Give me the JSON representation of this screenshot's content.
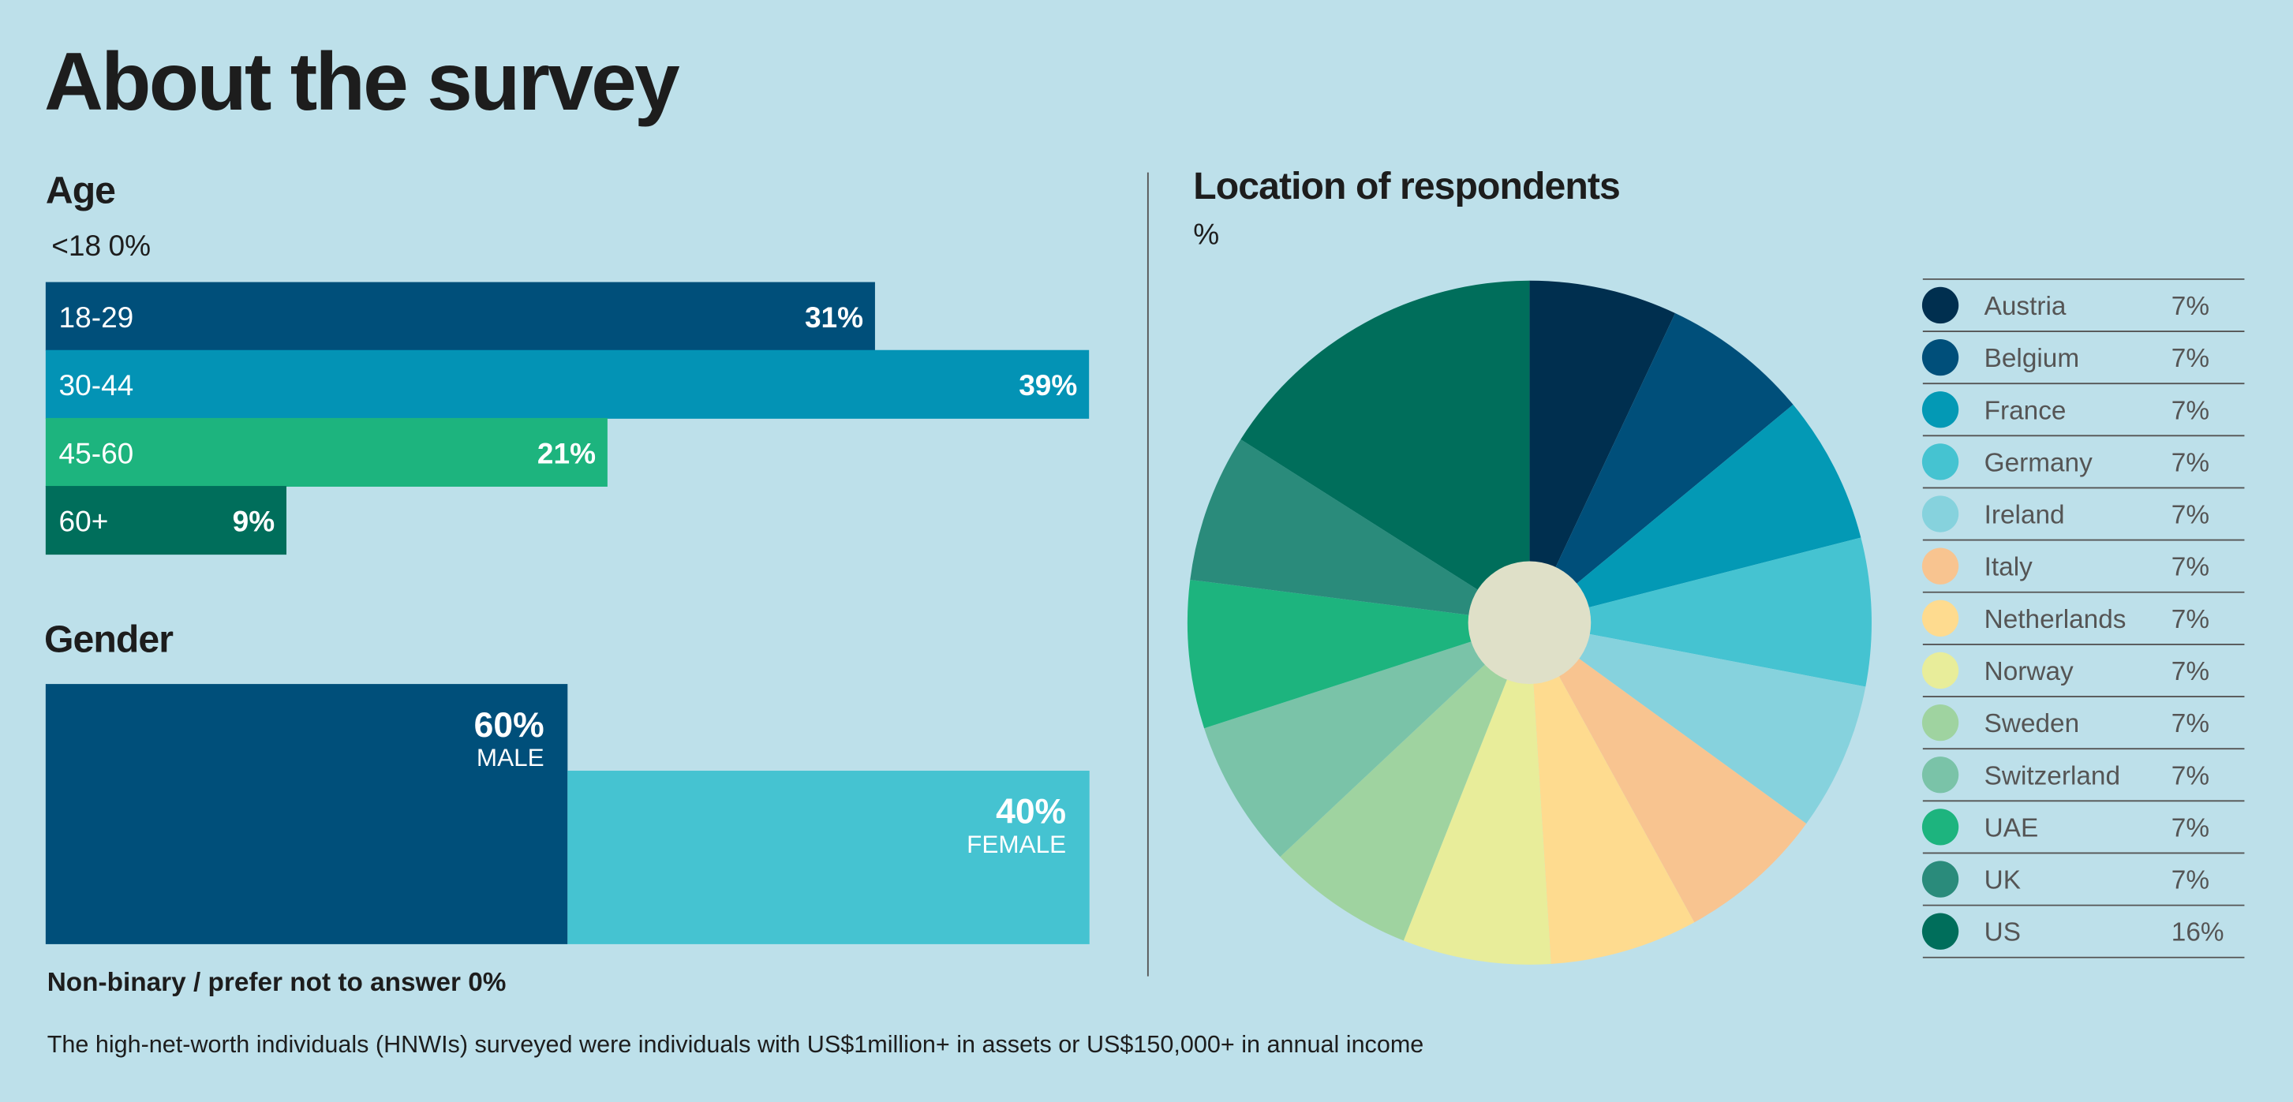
{
  "title": "About the survey",
  "footnote": "The high-net-worth individuals (HNWIs) surveyed were individuals with US$1million+ in assets or US$150,000+ in annual income",
  "chart_data": [
    {
      "type": "bar",
      "title": "Age",
      "categories": [
        "<18",
        "18-29",
        "30-44",
        "45-60",
        "60+"
      ],
      "values": [
        0,
        31,
        39,
        21,
        9
      ],
      "value_labels": [
        "0%",
        "31%",
        "39%",
        "21%",
        "9%"
      ],
      "colors": [
        "#004f7a",
        "#004f7a",
        "#0393b5",
        "#1db47e",
        "#006e5b"
      ]
    },
    {
      "type": "mosaic",
      "title": "Gender",
      "categories": [
        "MALE",
        "FEMALE"
      ],
      "values": [
        60,
        40
      ],
      "value_labels": [
        "60%",
        "40%"
      ],
      "colors": [
        "#004f7a",
        "#45c3d1"
      ],
      "note": "Non-binary / prefer not to answer 0%"
    },
    {
      "type": "pie",
      "title": "Location of respondents",
      "subtitle": "%",
      "categories": [
        "Austria",
        "Belgium",
        "France",
        "Germany",
        "Ireland",
        "Italy",
        "Netherlands",
        "Norway",
        "Sweden",
        "Switzerland",
        "UAE",
        "UK",
        "US"
      ],
      "values": [
        7,
        7,
        7,
        7,
        7,
        7,
        7,
        7,
        7,
        7,
        7,
        7,
        16
      ],
      "value_labels": [
        "7%",
        "7%",
        "7%",
        "7%",
        "7%",
        "7%",
        "7%",
        "7%",
        "7%",
        "7%",
        "7%",
        "7%",
        "16%"
      ],
      "colors": [
        "#002f4f",
        "#004f7a",
        "#0399b5",
        "#45c3d1",
        "#86d2dd",
        "#f8c490",
        "#fedb8f",
        "#e8ed9a",
        "#9fd3a0",
        "#7ac3a8",
        "#1db47e",
        "#2a8b7b",
        "#006e5b"
      ],
      "legend": "right"
    }
  ]
}
